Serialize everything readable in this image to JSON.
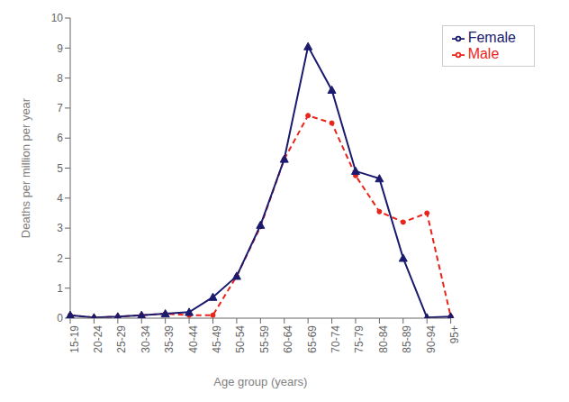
{
  "chart_data": {
    "type": "line",
    "xlabel": "Age group (years)",
    "ylabel": "Deaths per million per year",
    "categories": [
      "15-19",
      "20-24",
      "25-29",
      "30-34",
      "35-39",
      "40-44",
      "45-49",
      "50-54",
      "55-59",
      "60-64",
      "65-69",
      "70-74",
      "75-79",
      "80-84",
      "85-89",
      "90-94",
      "95+"
    ],
    "series": [
      {
        "name": "Male",
        "color": "#e8251a",
        "marker": "dot",
        "line_style": "dashed",
        "values": [
          0.1,
          0.02,
          0.05,
          0.1,
          0.15,
          0.1,
          0.1,
          1.4,
          3.05,
          5.3,
          6.75,
          6.5,
          4.75,
          3.55,
          3.2,
          3.5,
          0.05
        ]
      },
      {
        "name": "Female",
        "color": "#1a1a6e",
        "marker": "triangle",
        "line_style": "solid",
        "values": [
          0.1,
          0.02,
          0.05,
          0.1,
          0.15,
          0.2,
          0.7,
          1.4,
          3.1,
          5.3,
          9.05,
          7.6,
          4.9,
          4.65,
          2.0,
          0.02,
          0.05
        ]
      }
    ],
    "ylim": [
      0,
      10
    ],
    "yticks": [
      0,
      1,
      2,
      3,
      4,
      5,
      6,
      7,
      8,
      9,
      10
    ],
    "grid": false,
    "legend": "upper right"
  }
}
